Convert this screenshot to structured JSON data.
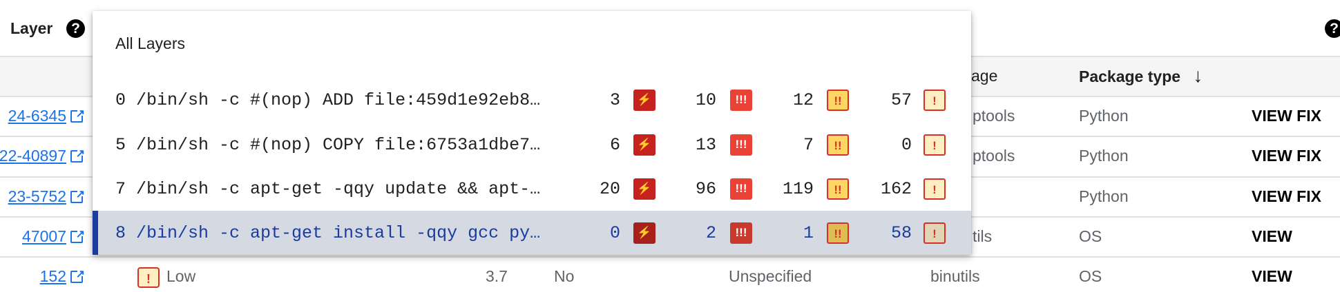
{
  "header": {
    "layer_label": "Layer",
    "help_icon": "?"
  },
  "table": {
    "columns": {
      "package": "age",
      "package_type": "Package type",
      "sort_icon": "↓"
    },
    "rows": [
      {
        "cve": "24-6345",
        "package": "ptools",
        "package_type": "Python",
        "action": "VIEW FIX"
      },
      {
        "cve": "22-40897",
        "package": "ptools",
        "package_type": "Python",
        "action": "VIEW FIX"
      },
      {
        "cve": "23-5752",
        "package": "",
        "package_type": "Python",
        "action": "VIEW FIX"
      },
      {
        "cve": "47007",
        "package": "tils",
        "package_type": "OS",
        "action": "VIEW"
      },
      {
        "cve": "152",
        "severity_icon": "!",
        "severity": "Low",
        "score": "3.7",
        "fix_available": "No",
        "effort": "Unspecified",
        "package": "binutils",
        "package_type": "OS",
        "action": "VIEW"
      }
    ]
  },
  "layer_menu": {
    "title": "All Layers",
    "badge_icons": {
      "critical": "⚡",
      "high": "!!!",
      "medium": "!!",
      "low": "!"
    },
    "colors": {
      "critical": "#c5221f",
      "high": "#ea4335",
      "medium": "#fdd663",
      "low": "#feefc3",
      "selected": "#1a3ba0"
    },
    "items": [
      {
        "label": "0 /bin/sh -c #(nop) ADD file:459d1e92eb8…",
        "critical": "3",
        "high": "10",
        "medium": "12",
        "low": "57",
        "selected": false
      },
      {
        "label": "5 /bin/sh -c #(nop) COPY file:6753a1dbe7…",
        "critical": "6",
        "high": "13",
        "medium": "7",
        "low": "0",
        "selected": false
      },
      {
        "label": "7 /bin/sh -c apt-get -qqy update && apt-…",
        "critical": "20",
        "high": "96",
        "medium": "119",
        "low": "162",
        "selected": false
      },
      {
        "label": "8 /bin/sh -c apt-get install -qqy gcc py…",
        "critical": "0",
        "high": "2",
        "medium": "1",
        "low": "58",
        "selected": true
      }
    ]
  }
}
